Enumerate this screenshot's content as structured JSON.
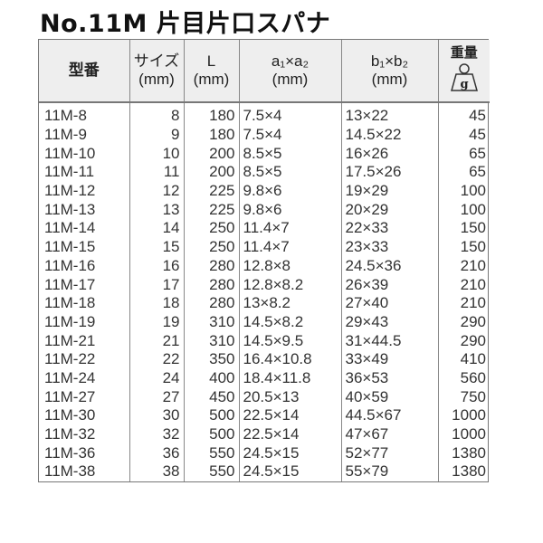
{
  "title": "No.11M 片目片口スパナ",
  "headers": {
    "model": "型番",
    "size": "サイズ",
    "size_unit": "(mm)",
    "length": "L",
    "length_unit": "(mm)",
    "a": "a₁×a₂",
    "a_unit": "(mm)",
    "b": "b₁×b₂",
    "b_unit": "(mm)",
    "weight": "重量",
    "weight_unit": "g"
  },
  "rows": [
    [
      "11M-8",
      "8",
      "180",
      "7.5×4",
      "13×22",
      "45"
    ],
    [
      "11M-9",
      "9",
      "180",
      "7.5×4",
      "14.5×22",
      "45"
    ],
    [
      "11M-10",
      "10",
      "200",
      "8.5×5",
      "16×26",
      "65"
    ],
    [
      "11M-11",
      "11",
      "200",
      "8.5×5",
      "17.5×26",
      "65"
    ],
    [
      "11M-12",
      "12",
      "225",
      "9.8×6",
      "19×29",
      "100"
    ],
    [
      "11M-13",
      "13",
      "225",
      "9.8×6",
      "20×29",
      "100"
    ],
    [
      "11M-14",
      "14",
      "250",
      "11.4×7",
      "22×33",
      "150"
    ],
    [
      "11M-15",
      "15",
      "250",
      "11.4×7",
      "23×33",
      "150"
    ],
    [
      "11M-16",
      "16",
      "280",
      "12.8×8",
      "24.5×36",
      "210"
    ],
    [
      "11M-17",
      "17",
      "280",
      "12.8×8.2",
      "26×39",
      "210"
    ],
    [
      "11M-18",
      "18",
      "280",
      "13×8.2",
      "27×40",
      "210"
    ],
    [
      "11M-19",
      "19",
      "310",
      "14.5×8.2",
      "29×43",
      "290"
    ],
    [
      "11M-21",
      "21",
      "310",
      "14.5×9.5",
      "31×44.5",
      "290"
    ],
    [
      "11M-22",
      "22",
      "350",
      "16.4×10.8",
      "33×49",
      "410"
    ],
    [
      "11M-24",
      "24",
      "400",
      "18.4×11.8",
      "36×53",
      "560"
    ],
    [
      "11M-27",
      "27",
      "450",
      "20.5×13",
      "40×59",
      "750"
    ],
    [
      "11M-30",
      "30",
      "500",
      "22.5×14",
      "44.5×67",
      "1000"
    ],
    [
      "11M-32",
      "32",
      "500",
      "22.5×14",
      "47×67",
      "1000"
    ],
    [
      "11M-36",
      "36",
      "550",
      "24.5×15",
      "52×77",
      "1380"
    ],
    [
      "11M-38",
      "38",
      "550",
      "24.5×15",
      "55×79",
      "1380"
    ]
  ]
}
